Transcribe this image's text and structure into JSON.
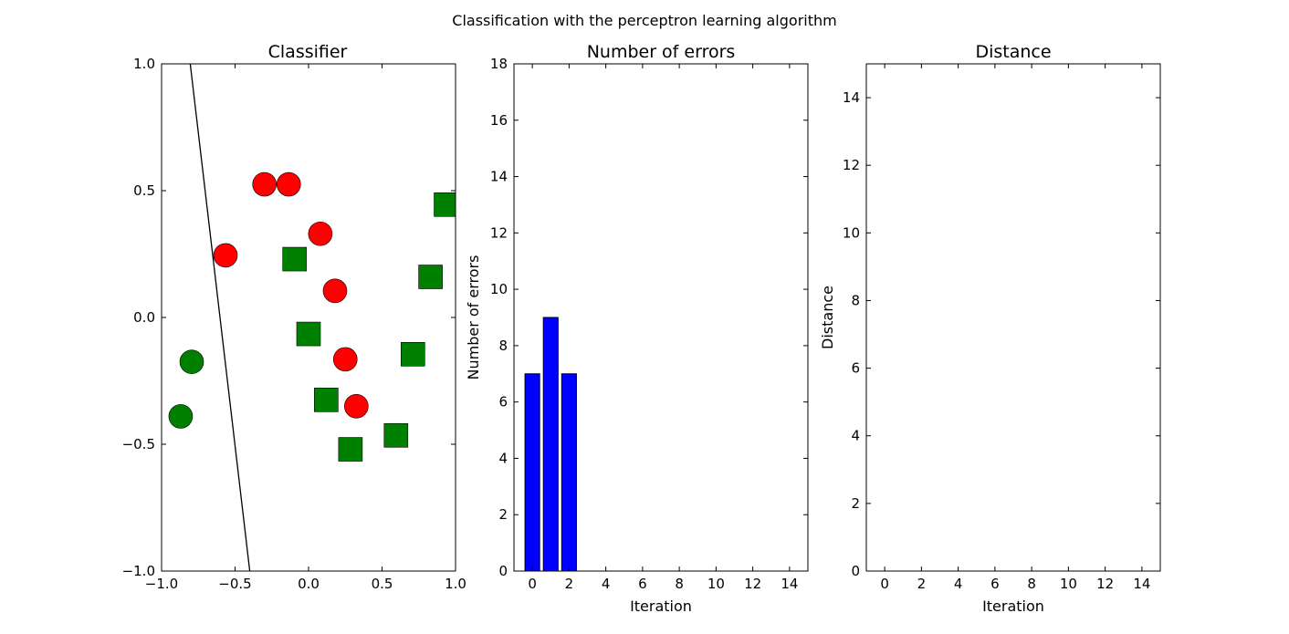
{
  "figure": {
    "suptitle": "Classification with the perceptron learning algorithm"
  },
  "chart_data": [
    {
      "type": "scatter",
      "title": "Classifier",
      "xlabel": "",
      "ylabel": "",
      "xlim": [
        -1.0,
        1.0
      ],
      "ylim": [
        -1.0,
        1.0
      ],
      "xticks": [
        "−1.0",
        "−0.5",
        "0.0",
        "0.5",
        "1.0"
      ],
      "yticks": [
        "−1.0",
        "−0.5",
        "0.0",
        "0.5",
        "1.0"
      ],
      "series": [
        {
          "name": "red circles",
          "marker": "circle",
          "color": "#ff0000",
          "points": [
            [
              -0.3,
              0.525
            ],
            [
              -0.135,
              0.525
            ],
            [
              0.08,
              0.33
            ],
            [
              -0.565,
              0.245
            ],
            [
              0.18,
              0.105
            ],
            [
              0.25,
              -0.165
            ],
            [
              0.325,
              -0.35
            ]
          ]
        },
        {
          "name": "green circles",
          "marker": "circle",
          "color": "#008000",
          "points": [
            [
              -0.795,
              -0.175
            ],
            [
              -0.87,
              -0.39
            ]
          ]
        },
        {
          "name": "green squares",
          "marker": "square",
          "color": "#008000",
          "points": [
            [
              0.935,
              0.445
            ],
            [
              -0.095,
              0.23
            ],
            [
              0.83,
              0.16
            ],
            [
              0.0,
              -0.065
            ],
            [
              0.71,
              -0.145
            ],
            [
              0.12,
              -0.325
            ],
            [
              0.285,
              -0.52
            ],
            [
              0.595,
              -0.465
            ]
          ]
        }
      ],
      "line": {
        "name": "decision boundary",
        "color": "#000000",
        "from": [
          -0.805,
          1.0
        ],
        "to": [
          -0.4,
          -1.0
        ]
      }
    },
    {
      "type": "bar",
      "title": "Number of errors",
      "xlabel": "Iteration",
      "ylabel": "Number of errors",
      "xlim": [
        -1,
        15
      ],
      "ylim": [
        0,
        18
      ],
      "xticks": [
        "0",
        "2",
        "4",
        "6",
        "8",
        "10",
        "12",
        "14"
      ],
      "yticks": [
        "0",
        "2",
        "4",
        "6",
        "8",
        "10",
        "12",
        "14",
        "16",
        "18"
      ],
      "color": "#0000ff",
      "categories": [
        0,
        1,
        2
      ],
      "values": [
        7,
        9,
        7
      ]
    },
    {
      "type": "line",
      "title": "Distance",
      "xlabel": "Iteration",
      "ylabel": "Distance",
      "xlim": [
        -1,
        15
      ],
      "ylim": [
        0,
        15
      ],
      "xticks": [
        "0",
        "2",
        "4",
        "6",
        "8",
        "10",
        "12",
        "14"
      ],
      "yticks": [
        "0",
        "2",
        "4",
        "6",
        "8",
        "10",
        "12",
        "14"
      ],
      "series": []
    }
  ]
}
